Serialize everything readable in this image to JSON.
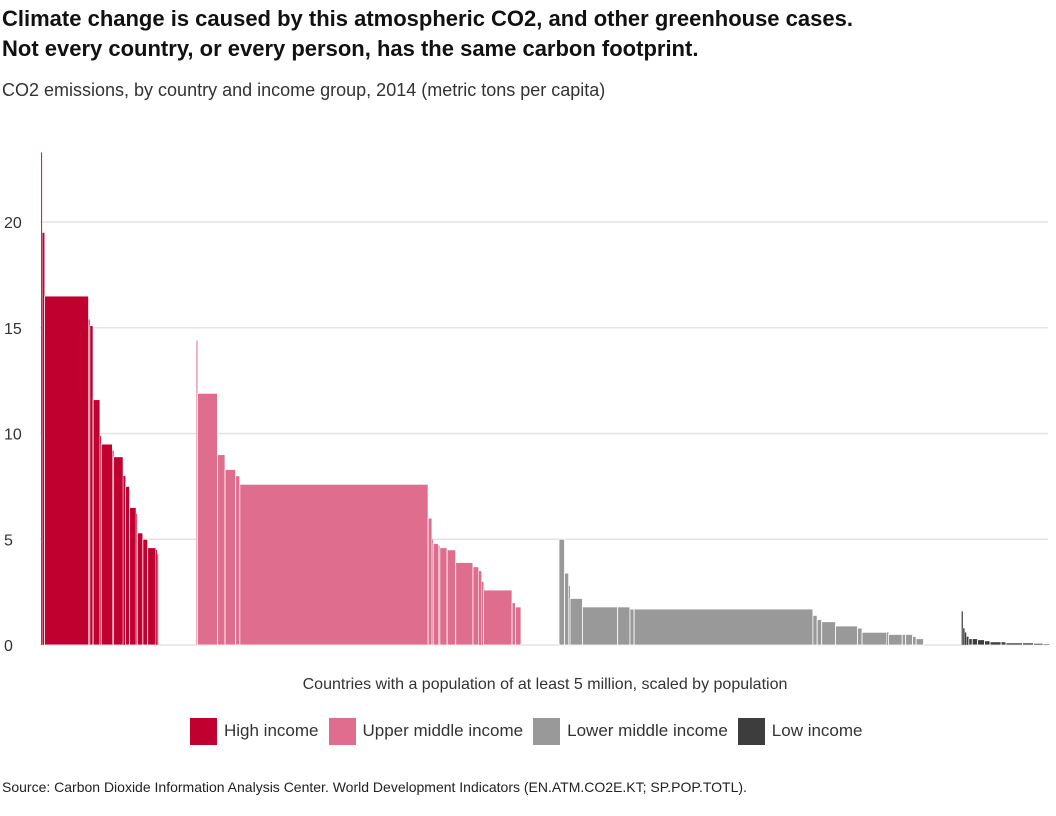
{
  "header": {
    "title_line1": "Climate change is caused by this atmospheric CO2, and other greenhouse cases.",
    "title_line2": "Not every country, or every person, has the same carbon footprint.",
    "subtitle": "CO2 emissions, by country and income group, 2014 (metric tons per capita)"
  },
  "footer": {
    "source": "Source: Carbon Dioxide Information Analysis Center. World Development Indicators (EN.ATM.CO2E.KT; SP.POP.TOTL)."
  },
  "chart_data": {
    "type": "bar",
    "title": "Climate change is caused by this atmospheric CO2, and other greenhouse cases. Not every country, or every person, has the same carbon footprint.",
    "subtitle": "CO2 emissions, by country and income group, 2014 (metric tons per capita)",
    "xlabel": "Countries with a population of at least 5 million, scaled by population",
    "ylabel": "",
    "ylim": [
      0,
      23.5
    ],
    "yticks": [
      0,
      5,
      10,
      15,
      20
    ],
    "grid": true,
    "legend_position": "bottom",
    "bar_width_meaning": "population (millions)",
    "groups": [
      {
        "name": "High income",
        "color": "#c0002f",
        "bars": [
          {
            "value": 23.3,
            "population": 5
          },
          {
            "value": 19.5,
            "population": 17
          },
          {
            "value": 16.5,
            "population": 319
          },
          {
            "value": 15.4,
            "population": 8
          },
          {
            "value": 15.1,
            "population": 24
          },
          {
            "value": 11.6,
            "population": 50
          },
          {
            "value": 9.9,
            "population": 9
          },
          {
            "value": 9.5,
            "population": 81
          },
          {
            "value": 9.2,
            "population": 5
          },
          {
            "value": 8.9,
            "population": 69
          },
          {
            "value": 8.0,
            "population": 17
          },
          {
            "value": 7.5,
            "population": 30
          },
          {
            "value": 6.5,
            "population": 47
          },
          {
            "value": 6.2,
            "population": 5
          },
          {
            "value": 5.3,
            "population": 40
          },
          {
            "value": 5.0,
            "population": 35
          },
          {
            "value": 4.6,
            "population": 60
          },
          {
            "value": 4.5,
            "population": 5
          },
          {
            "value": 4.3,
            "population": 7
          }
        ]
      },
      {
        "name": "Upper middle income",
        "color": "#de6d8e",
        "bars": [
          {
            "value": 14.4,
            "population": 8
          },
          {
            "value": 11.9,
            "population": 144
          },
          {
            "value": 9.0,
            "population": 55
          },
          {
            "value": 8.3,
            "population": 77
          },
          {
            "value": 8.0,
            "population": 30
          },
          {
            "value": 7.6,
            "population": 1364
          },
          {
            "value": 6.0,
            "population": 28
          },
          {
            "value": 5.0,
            "population": 6
          },
          {
            "value": 4.8,
            "population": 38
          },
          {
            "value": 4.7,
            "population": 10
          },
          {
            "value": 4.6,
            "population": 53
          },
          {
            "value": 4.5,
            "population": 62
          },
          {
            "value": 3.9,
            "population": 125
          },
          {
            "value": 3.7,
            "population": 42
          },
          {
            "value": 3.5,
            "population": 20
          },
          {
            "value": 3.0,
            "population": 15
          },
          {
            "value": 2.6,
            "population": 206
          },
          {
            "value": 2.0,
            "population": 25
          },
          {
            "value": 1.8,
            "population": 40
          }
        ]
      },
      {
        "name": "Lower middle income",
        "color": "#999999",
        "bars": [
          {
            "value": 5.0,
            "population": 40
          },
          {
            "value": 3.4,
            "population": 30
          },
          {
            "value": 2.8,
            "population": 10
          },
          {
            "value": 2.2,
            "population": 90
          },
          {
            "value": 1.8,
            "population": 255
          },
          {
            "value": 1.8,
            "population": 89
          },
          {
            "value": 1.7,
            "population": 30
          },
          {
            "value": 1.7,
            "population": 1295
          },
          {
            "value": 1.4,
            "population": 31
          },
          {
            "value": 1.2,
            "population": 33
          },
          {
            "value": 1.1,
            "population": 100
          },
          {
            "value": 0.9,
            "population": 159
          },
          {
            "value": 0.8,
            "population": 33
          },
          {
            "value": 0.6,
            "population": 177
          },
          {
            "value": 0.6,
            "population": 15
          },
          {
            "value": 0.5,
            "population": 99
          },
          {
            "value": 0.5,
            "population": 25
          },
          {
            "value": 0.5,
            "population": 50
          },
          {
            "value": 0.4,
            "population": 26
          },
          {
            "value": 0.3,
            "population": 53
          }
        ]
      },
      {
        "name": "Low income",
        "color": "#3d3d3d",
        "bars": [
          {
            "value": 1.6,
            "population": 11
          },
          {
            "value": 0.8,
            "population": 12
          },
          {
            "value": 0.6,
            "population": 13
          },
          {
            "value": 0.4,
            "population": 17
          },
          {
            "value": 0.3,
            "population": 25
          },
          {
            "value": 0.3,
            "population": 39
          },
          {
            "value": 0.25,
            "population": 50
          },
          {
            "value": 0.2,
            "population": 40
          },
          {
            "value": 0.15,
            "population": 80
          },
          {
            "value": 0.15,
            "population": 35
          },
          {
            "value": 0.1,
            "population": 120
          },
          {
            "value": 0.1,
            "population": 80
          },
          {
            "value": 0.08,
            "population": 70
          },
          {
            "value": 0.06,
            "population": 48
          }
        ]
      }
    ]
  }
}
